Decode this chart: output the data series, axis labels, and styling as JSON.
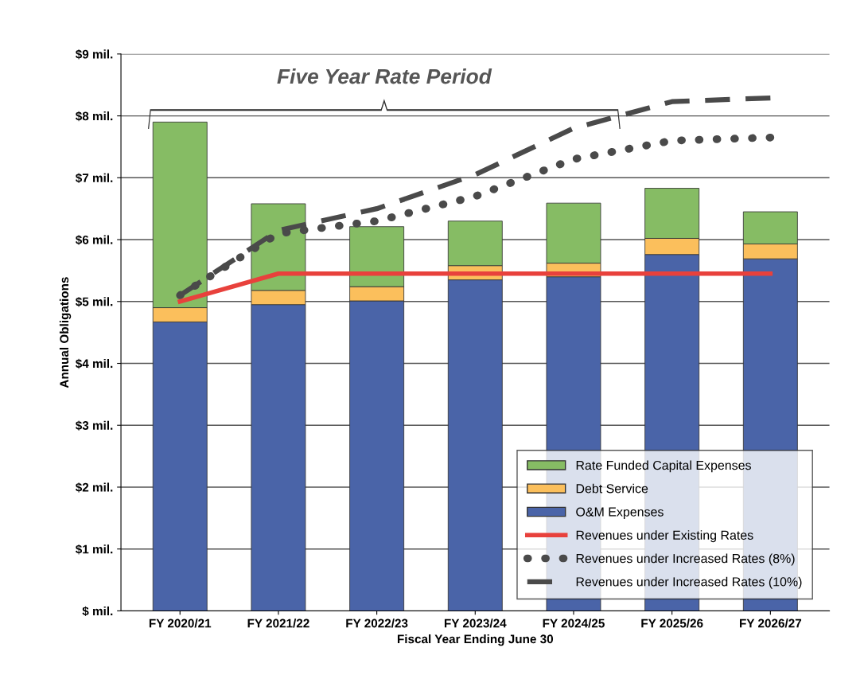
{
  "chart_data": {
    "type": "bar",
    "stacked": true,
    "xlabel": "Fiscal Year Ending June 30",
    "ylabel": "Annual Obligations",
    "categories": [
      "FY 2020/21",
      "FY 2021/22",
      "FY 2022/23",
      "FY 2023/24",
      "FY 2024/25",
      "FY 2025/26",
      "FY 2026/27"
    ],
    "series": [
      {
        "name": "O&M Expenses",
        "color": "#4a64a8",
        "values": [
          4.67,
          4.95,
          5.01,
          5.35,
          5.4,
          5.76,
          5.69
        ]
      },
      {
        "name": "Debt Service",
        "color": "#fbbf5c",
        "values": [
          0.23,
          0.23,
          0.23,
          0.23,
          0.22,
          0.26,
          0.24
        ]
      },
      {
        "name": "Rate Funded Capital Expenses",
        "color": "#86bc64",
        "values": [
          3.0,
          1.4,
          0.97,
          0.72,
          0.97,
          0.81,
          0.52
        ]
      },
      {
        "name": "Revenues under Existing Rates",
        "type": "line",
        "color": "#e8413c",
        "line_style": "solid",
        "values": [
          5.0,
          5.45,
          5.45,
          5.45,
          5.45,
          5.45,
          5.45
        ]
      },
      {
        "name": "Revenues under Increased Rates (8%)",
        "type": "line",
        "color": "#4a4a4a",
        "line_style": "dotted",
        "values": [
          5.1,
          6.1,
          6.3,
          6.7,
          7.3,
          7.6,
          7.65
        ]
      },
      {
        "name": "Revenues under Increased Rates (10%)",
        "type": "line",
        "color": "#4a4a4a",
        "line_style": "dashed",
        "values": [
          5.1,
          6.15,
          6.5,
          7.05,
          7.8,
          8.23,
          8.29
        ]
      }
    ],
    "ylim": [
      0,
      9
    ],
    "yticks": [
      {
        "value": 0,
        "label": "$ mil."
      },
      {
        "value": 1,
        "label": "$1 mil."
      },
      {
        "value": 2,
        "label": "$2 mil."
      },
      {
        "value": 3,
        "label": "$3 mil."
      },
      {
        "value": 4,
        "label": "$4 mil."
      },
      {
        "value": 5,
        "label": "$5 mil."
      },
      {
        "value": 6,
        "label": "$6 mil."
      },
      {
        "value": 7,
        "label": "$7 mil."
      },
      {
        "value": 8,
        "label": "$8 mil."
      },
      {
        "value": 9,
        "label": "$9 mil."
      }
    ],
    "grid": "y",
    "legend": "bottom right",
    "annotations": [
      "Five Year Rate Period"
    ]
  }
}
